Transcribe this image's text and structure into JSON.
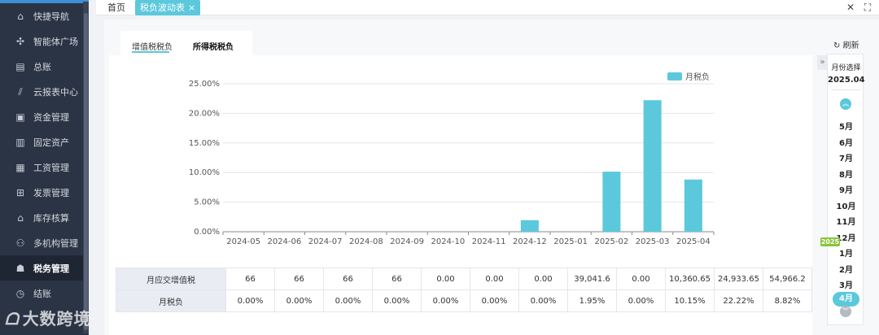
{
  "sidebar": {
    "items": [
      {
        "label": "快捷导航",
        "icon": "home-icon"
      },
      {
        "label": "智能体广场",
        "icon": "puzzle-icon"
      },
      {
        "label": "总账",
        "icon": "ledger-icon"
      },
      {
        "label": "云报表中心",
        "icon": "chart-icon"
      },
      {
        "label": "资金管理",
        "icon": "wallet-icon"
      },
      {
        "label": "固定资产",
        "icon": "asset-icon"
      },
      {
        "label": "工资管理",
        "icon": "salary-icon"
      },
      {
        "label": "发票管理",
        "icon": "invoice-icon"
      },
      {
        "label": "库存核算",
        "icon": "inventory-icon"
      },
      {
        "label": "多机构管理",
        "icon": "org-icon"
      },
      {
        "label": "税务管理",
        "icon": "tax-icon"
      },
      {
        "label": "结账",
        "icon": "checkout-icon"
      }
    ],
    "active_index": 10,
    "watermark": "大数跨境"
  },
  "tabbar": {
    "home_label": "首页",
    "active_tab_label": "税负波动表",
    "close_glyph": "×",
    "close_icon": "close-icon",
    "fullscreen_icon": "fullscreen-icon"
  },
  "subtabs": {
    "vat_label": "增值税税负",
    "income_label": "所得税税负"
  },
  "refresh_label": "刷新",
  "chart_data": {
    "type": "bar",
    "categories": [
      "2024-05",
      "2024-06",
      "2024-07",
      "2024-08",
      "2024-09",
      "2024-10",
      "2024-11",
      "2024-12",
      "2025-01",
      "2025-02",
      "2025-03",
      "2025-04"
    ],
    "series": [
      {
        "name": "月税负",
        "values": [
          0,
          0,
          0,
          0,
          0,
          0,
          0,
          1.95,
          0,
          10.15,
          22.22,
          8.82
        ],
        "color": "#5bc8dc"
      }
    ],
    "yticks": [
      "0.00%",
      "5.00%",
      "10.00%",
      "15.00%",
      "20.00%",
      "25.00%"
    ],
    "ylim": [
      0,
      25
    ],
    "legend_position": "top-right",
    "grid": true
  },
  "table": {
    "rows": [
      {
        "label": "月应交增值税",
        "values": [
          "66",
          "66",
          "66",
          "66",
          "0.00",
          "0.00",
          "0.00",
          "39,041.6",
          "0.00",
          "10,360.65",
          "24,933.65",
          "54,966.2"
        ]
      },
      {
        "label": "月税负",
        "values": [
          "0.00%",
          "0.00%",
          "0.00%",
          "0.00%",
          "0.00%",
          "0.00%",
          "0.00%",
          "1.95%",
          "0.00%",
          "10.15%",
          "22.22%",
          "8.82%"
        ]
      }
    ]
  },
  "picker": {
    "title": "月份选择",
    "current": "2025.04",
    "year_badge": "2025",
    "months": [
      "5月",
      "6月",
      "7月",
      "8月",
      "9月",
      "10月",
      "11月",
      "12月",
      "1月",
      "2月",
      "3月",
      "4月"
    ],
    "selected_index": 11,
    "toggle_glyph": "»"
  }
}
